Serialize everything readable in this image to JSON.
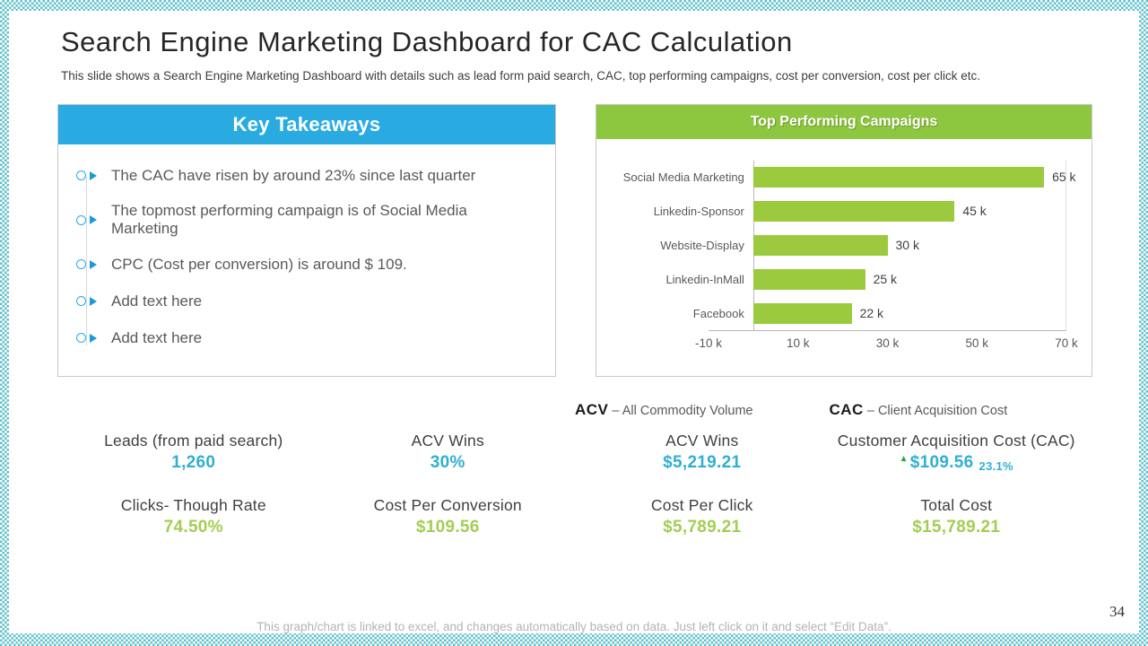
{
  "slide": {
    "title": "Search Engine Marketing Dashboard for CAC Calculation",
    "subtitle": "This slide shows a Search Engine Marketing  Dashboard with details such as lead form paid search, CAC, top performing campaigns, cost per conversion, cost per click etc.",
    "footer_note": "This graph/chart is linked to excel, and changes automatically based on data. Just left click on it and select “Edit Data”.",
    "page_number": "34"
  },
  "key_takeaways": {
    "header": "Key Takeaways",
    "items": [
      "The CAC have risen by around 23% since last quarter",
      "The topmost performing campaign is of Social Media Marketing",
      "CPC (Cost per conversion) is around $ 109.",
      "Add text here",
      "Add text here"
    ]
  },
  "chart_data": {
    "type": "bar",
    "orientation": "horizontal",
    "title": "Top Performing Campaigns",
    "categories": [
      "Social Media Marketing",
      "Linkedin-Sponsor",
      "Website-Display",
      "Linkedin-InMall",
      "Facebook"
    ],
    "values": [
      65,
      45,
      30,
      25,
      22
    ],
    "value_labels": [
      "65 k",
      "45 k",
      "30 k",
      "25 k",
      "22 k"
    ],
    "unit": "k",
    "x_ticks": [
      "-10 k",
      "10 k",
      "30 k",
      "50 k",
      "70 k"
    ],
    "xlim": [
      -10,
      70
    ],
    "bar_color": "#9bca3e",
    "grid": false,
    "legend": false
  },
  "definitions": [
    {
      "abbr": "ACV",
      "text": "– All Commodity Volume"
    },
    {
      "abbr": "CAC",
      "text": "– Client Acquisition Cost"
    }
  ],
  "metrics": {
    "row1": [
      {
        "label": "Leads (from paid search)",
        "value": "1,260",
        "color": "blue"
      },
      {
        "label": "ACV Wins",
        "value": "30%",
        "color": "blue"
      },
      {
        "label": "ACV Wins",
        "value": "$5,219.21",
        "color": "blue"
      },
      {
        "label": "Customer Acquisition Cost (CAC)",
        "value": "$109.56",
        "delta": "23.1%",
        "indicator": "up-triangle",
        "color": "blue"
      }
    ],
    "row2": [
      {
        "label": "Clicks- Though Rate",
        "value": "74.50%",
        "color": "green"
      },
      {
        "label": "Cost Per Conversion",
        "value": "$109.56",
        "color": "green"
      },
      {
        "label": "Cost Per Click",
        "value": "$5,789.21",
        "color": "green"
      },
      {
        "label": "Total Cost",
        "value": "$15,789.21",
        "color": "green"
      }
    ]
  },
  "colors": {
    "accent_blue": "#29abe2",
    "accent_green": "#8dc63f",
    "bar_green": "#9bca3e",
    "value_blue": "#2fafd3",
    "value_green": "#a3cd54",
    "delta_green": "#2aa148",
    "frame_teal": "#5fc0cc"
  }
}
